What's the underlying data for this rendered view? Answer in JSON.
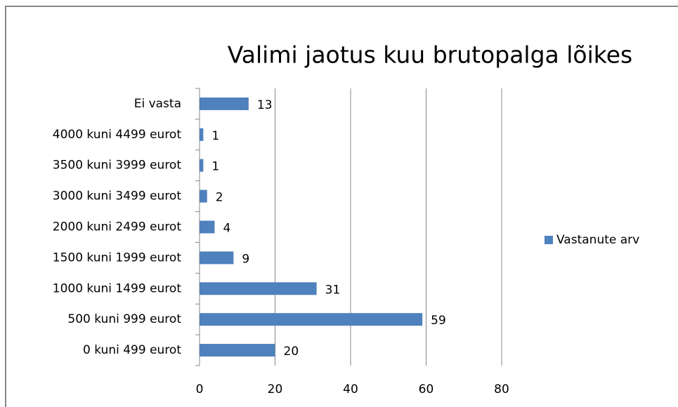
{
  "chart_data": {
    "type": "bar",
    "orientation": "horizontal",
    "title": "Valimi jaotus kuu brutopalga lõikes",
    "categories": [
      "Ei vasta",
      "4000 kuni 4499 eurot",
      "3500 kuni 3999 eurot",
      "3000 kuni 3499 eurot",
      "2000 kuni 2499 eurot",
      "1500 kuni 1999 eurot",
      "1000 kuni 1499 eurot",
      "500 kuni 999 eurot",
      "0 kuni 499 eurot"
    ],
    "series": [
      {
        "name": "Vastanute arv",
        "color": "#4f81bd",
        "values": [
          13,
          1,
          1,
          2,
          4,
          9,
          31,
          59,
          20
        ]
      }
    ],
    "xlim": [
      0,
      80
    ],
    "xticks": [
      0,
      20,
      40,
      60,
      80
    ],
    "grid": true,
    "legend": "right"
  }
}
